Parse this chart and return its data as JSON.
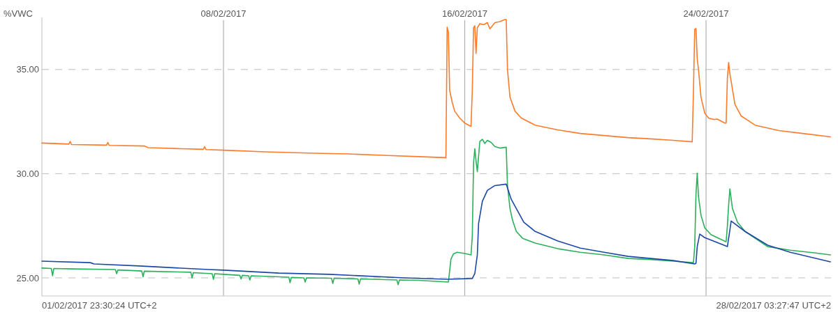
{
  "chart_data": {
    "type": "line",
    "ylabel": "%VWC",
    "xlim": [
      "2017-02-01T23:30:24",
      "2017-02-28T03:27:47"
    ],
    "xticks": [
      {
        "value": "2017-02-08",
        "label": "08/02/2017"
      },
      {
        "value": "2017-02-16",
        "label": "16/02/2017"
      },
      {
        "value": "2017-02-24",
        "label": "24/02/2017"
      }
    ],
    "ylim": [
      24.13,
      37.5
    ],
    "yticks": [
      {
        "value": 25,
        "label": "25.00"
      },
      {
        "value": 30,
        "label": "30.00"
      },
      {
        "value": 35,
        "label": "35.00"
      }
    ],
    "grid": true,
    "annotations": [
      "01/02/2017 23:30:24 UTC+2",
      "28/02/2017 03:27:47 UTC+2"
    ],
    "series": [
      {
        "color": "#fd7b2a",
        "x": [
          "2017-02-01T23:31",
          "2017-02-02T21:00",
          "2017-02-02T22:00",
          "2017-02-02T23:00",
          "2017-02-04T03:00",
          "2017-02-04T04:00",
          "2017-02-04T05:00",
          "2017-02-05T09:00",
          "2017-02-05T12:00",
          "2017-02-06T14:00",
          "2017-02-07T08:00",
          "2017-02-07T09:00",
          "2017-02-07T10:00",
          "2017-02-08T00:00",
          "2017-02-09T09:00",
          "2017-02-11T00:00",
          "2017-02-12T03:00",
          "2017-02-13T07:00",
          "2017-02-14T11:00",
          "2017-02-15T09:00",
          "2017-02-15T10:00",
          "2017-02-15T11:00",
          "2017-02-15T12:00",
          "2017-02-15T14:00",
          "2017-02-15T16:00",
          "2017-02-15T20:00",
          "2017-02-16T00:00",
          "2017-02-16T05:00",
          "2017-02-16T06:00",
          "2017-02-16T07:00",
          "2017-02-16T08:00",
          "2017-02-16T09:00",
          "2017-02-16T10:00",
          "2017-02-16T12:00",
          "2017-02-16T15:00",
          "2017-02-16T18:00",
          "2017-02-16T20:00",
          "2017-02-17T00:00",
          "2017-02-17T04:00",
          "2017-02-17T08:00",
          "2017-02-17T09:00",
          "2017-02-17T10:00",
          "2017-02-17T12:00",
          "2017-02-17T16:00",
          "2017-02-17T21:00",
          "2017-02-18T08:00",
          "2017-02-19T02:00",
          "2017-02-19T20:00",
          "2017-02-21T10:00",
          "2017-02-22T04:00",
          "2017-02-22T22:00",
          "2017-02-23T13:00",
          "2017-02-23T14:00",
          "2017-02-23T15:00",
          "2017-02-23T16:00",
          "2017-02-23T17:00",
          "2017-02-23T18:00",
          "2017-02-23T20:00",
          "2017-02-23T23:00",
          "2017-02-24T02:00",
          "2017-02-24T06:00",
          "2017-02-24T09:00",
          "2017-02-24T15:00",
          "2017-02-24T16:00",
          "2017-02-24T17:00",
          "2017-02-24T18:00",
          "2017-02-24T19:00",
          "2017-02-24T20:00",
          "2017-02-24T23:00",
          "2017-02-25T04:00",
          "2017-02-25T15:00",
          "2017-02-26T10:00",
          "2017-02-27T05:00",
          "2017-02-28T03:00"
        ],
        "values": [
          31.47,
          31.42,
          31.55,
          31.4,
          31.37,
          31.5,
          31.36,
          31.33,
          31.25,
          31.2,
          31.17,
          31.3,
          31.16,
          31.13,
          31.05,
          30.98,
          30.95,
          30.88,
          30.82,
          30.77,
          37.03,
          36.8,
          34.0,
          33.43,
          33.0,
          32.67,
          32.43,
          32.27,
          34.0,
          37.0,
          37.1,
          35.77,
          37.0,
          37.2,
          37.15,
          37.25,
          36.95,
          37.25,
          37.3,
          37.4,
          37.4,
          35.0,
          33.67,
          33.0,
          32.67,
          32.33,
          32.1,
          31.93,
          31.73,
          31.67,
          31.6,
          31.53,
          34.0,
          36.93,
          36.97,
          35.5,
          35.0,
          33.67,
          32.9,
          32.67,
          32.6,
          32.62,
          32.43,
          32.43,
          34.6,
          35.33,
          34.8,
          34.43,
          33.33,
          32.77,
          32.33,
          32.07,
          31.93,
          31.77
        ]
      },
      {
        "color": "#2bb05b",
        "x": [
          "2017-02-01T23:31",
          "2017-02-02T07:00",
          "2017-02-02T08:00",
          "2017-02-02T09:00",
          "2017-02-03T00:00",
          "2017-02-04T10:00",
          "2017-02-04T11:00",
          "2017-02-04T12:00",
          "2017-02-05T07:00",
          "2017-02-05T08:00",
          "2017-02-05T09:00",
          "2017-02-06T22:00",
          "2017-02-06T23:00",
          "2017-02-07T00:00",
          "2017-02-07T15:00",
          "2017-02-07T16:00",
          "2017-02-07T17:00",
          "2017-02-08T00:00",
          "2017-02-08T13:00",
          "2017-02-08T14:00",
          "2017-02-08T15:00",
          "2017-02-08T20:00",
          "2017-02-08T21:00",
          "2017-02-08T22:00",
          "2017-02-10T04:00",
          "2017-02-10T05:00",
          "2017-02-10T06:00",
          "2017-02-10T16:00",
          "2017-02-10T17:00",
          "2017-02-10T18:00",
          "2017-02-11T14:00",
          "2017-02-11T15:00",
          "2017-02-11T16:00",
          "2017-02-12T11:00",
          "2017-02-12T12:00",
          "2017-02-12T13:00",
          "2017-02-13T18:00",
          "2017-02-13T19:00",
          "2017-02-13T20:00",
          "2017-02-14T11:00",
          "2017-02-15T11:00",
          "2017-02-15T13:00",
          "2017-02-15T15:00",
          "2017-02-15T18:00",
          "2017-02-16T00:00",
          "2017-02-16T05:00",
          "2017-02-16T06:00",
          "2017-02-16T07:00",
          "2017-02-16T08:00",
          "2017-02-16T09:00",
          "2017-02-16T10:00",
          "2017-02-16T12:00",
          "2017-02-16T14:00",
          "2017-02-16T16:00",
          "2017-02-16T18:00",
          "2017-02-16T21:00",
          "2017-02-17T00:00",
          "2017-02-17T04:00",
          "2017-02-17T09:00",
          "2017-02-17T10:00",
          "2017-02-17T12:00",
          "2017-02-17T14:00",
          "2017-02-17T17:00",
          "2017-02-17T22:00",
          "2017-02-18T08:00",
          "2017-02-19T02:00",
          "2017-02-19T20:00",
          "2017-02-20T15:00",
          "2017-02-21T10:00",
          "2017-02-22T04:00",
          "2017-02-22T22:00",
          "2017-02-23T14:00",
          "2017-02-23T15:00",
          "2017-02-23T16:00",
          "2017-02-23T17:00",
          "2017-02-23T18:00",
          "2017-02-23T20:00",
          "2017-02-23T23:00",
          "2017-02-24T04:00",
          "2017-02-24T16:00",
          "2017-02-24T17:00",
          "2017-02-24T18:00",
          "2017-02-24T19:00",
          "2017-02-24T21:00",
          "2017-02-25T01:00",
          "2017-02-25T07:00",
          "2017-02-26T01:00",
          "2017-02-26T19:00",
          "2017-02-27T14:00",
          "2017-02-28T03:00"
        ],
        "values": [
          25.47,
          25.45,
          25.1,
          25.45,
          25.43,
          25.4,
          25.2,
          25.38,
          25.33,
          25.05,
          25.32,
          25.27,
          25.0,
          25.25,
          25.2,
          24.93,
          25.2,
          25.17,
          25.12,
          24.95,
          25.12,
          25.1,
          24.9,
          25.1,
          25.03,
          24.77,
          25.02,
          25.0,
          24.8,
          25.0,
          24.98,
          24.73,
          24.98,
          24.95,
          24.7,
          24.95,
          24.9,
          24.67,
          24.9,
          24.88,
          24.8,
          25.9,
          26.15,
          26.23,
          26.17,
          26.1,
          27.0,
          30.5,
          31.2,
          30.6,
          30.1,
          31.55,
          31.65,
          31.45,
          31.6,
          31.5,
          31.3,
          31.23,
          31.27,
          29.43,
          28.33,
          27.77,
          27.23,
          26.9,
          26.67,
          26.4,
          26.23,
          26.1,
          25.93,
          25.88,
          25.8,
          25.73,
          26.5,
          29.0,
          30.03,
          28.9,
          28.0,
          27.4,
          27.07,
          26.73,
          27.5,
          28.5,
          29.27,
          28.33,
          27.67,
          27.23,
          26.5,
          26.33,
          26.2,
          26.1
        ]
      },
      {
        "color": "#1b47a6",
        "x": [
          "2017-02-01T23:31",
          "2017-02-03T14:00",
          "2017-02-03T17:00",
          "2017-02-05T05:00",
          "2017-02-07T12:00",
          "2017-02-08T00:00",
          "2017-02-09T20:00",
          "2017-02-11T12:00",
          "2017-02-14T00:00",
          "2017-02-15T10:00",
          "2017-02-16T06:00",
          "2017-02-16T08:00",
          "2017-02-16T10:00",
          "2017-02-16T11:00",
          "2017-02-16T14:00",
          "2017-02-16T18:00",
          "2017-02-17T00:00",
          "2017-02-17T09:00",
          "2017-02-17T13:00",
          "2017-02-17T23:00",
          "2017-02-18T08:00",
          "2017-02-19T02:00",
          "2017-02-19T20:00",
          "2017-02-20T15:00",
          "2017-02-21T10:00",
          "2017-02-22T22:00",
          "2017-02-23T15:00",
          "2017-02-23T16:00",
          "2017-02-23T17:00",
          "2017-02-23T19:00",
          "2017-02-23T23:00",
          "2017-02-24T17:00",
          "2017-02-24T19:00",
          "2017-02-24T20:00",
          "2017-02-25T07:00",
          "2017-02-26T01:00",
          "2017-02-26T19:00",
          "2017-02-28T03:00"
        ],
        "values": [
          25.8,
          25.73,
          25.67,
          25.57,
          25.4,
          25.37,
          25.23,
          25.17,
          25.0,
          24.93,
          24.97,
          25.2,
          26.1,
          27.6,
          28.67,
          29.2,
          29.43,
          29.5,
          28.77,
          27.67,
          27.23,
          26.77,
          26.43,
          26.23,
          26.03,
          25.83,
          25.67,
          25.7,
          26.5,
          27.1,
          26.93,
          26.5,
          27.3,
          27.73,
          27.23,
          26.57,
          26.23,
          25.77
        ]
      }
    ]
  }
}
